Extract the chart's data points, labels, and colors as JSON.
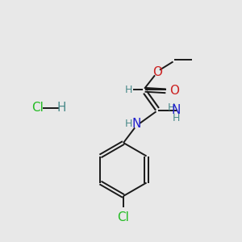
{
  "background_color": "#e8e8e8",
  "bond_color": "#1a1a1a",
  "h_color": "#4a8a8a",
  "n_color": "#2020cc",
  "o_color": "#cc2020",
  "cl_color": "#22bb22",
  "figsize": [
    3.0,
    3.0
  ],
  "dpi": 100,
  "xlim": [
    0,
    10
  ],
  "ylim": [
    0,
    10
  ]
}
